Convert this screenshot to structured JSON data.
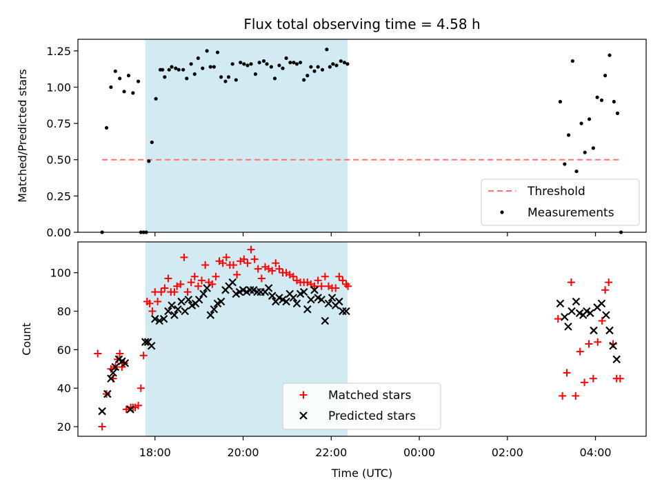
{
  "chart_data": [
    {
      "type": "scatter",
      "title": "Flux total observing time = 4.58 h",
      "xlabel": "",
      "ylabel": "Matched/Predicted stars",
      "x_unit": "hours",
      "xlim": [
        16.25,
        29.15
      ],
      "ylim": [
        0,
        1.33
      ],
      "yticks": [
        0.0,
        0.25,
        0.5,
        0.75,
        1.0,
        1.25
      ],
      "ytick_labels": [
        "0.00",
        "0.25",
        "0.50",
        "0.75",
        "1.00",
        "1.25"
      ],
      "grid": false,
      "legend_location": "lower right",
      "shaded_span": {
        "x": [
          17.78,
          22.37
        ],
        "color": "#add8e6"
      },
      "threshold_line": {
        "name": "Threshold",
        "y": 0.5,
        "x": [
          16.8,
          28.55
        ],
        "color": "#ff7070",
        "style": "dashed"
      },
      "series": [
        {
          "name": "Measurements",
          "color": "#000000",
          "marker": "dot",
          "x": [
            16.8,
            16.9,
            17.0,
            17.1,
            17.2,
            17.3,
            17.4,
            17.5,
            17.62,
            17.68,
            17.74,
            17.8,
            17.86,
            17.93,
            18.02,
            18.12,
            18.17,
            18.22,
            18.32,
            18.38,
            18.47,
            18.54,
            18.64,
            18.72,
            18.82,
            18.9,
            18.98,
            19.08,
            19.18,
            19.26,
            19.34,
            19.42,
            19.5,
            19.6,
            19.67,
            19.76,
            19.84,
            19.94,
            20.02,
            20.1,
            20.18,
            20.28,
            20.37,
            20.47,
            20.54,
            20.64,
            20.72,
            20.82,
            20.9,
            20.98,
            21.07,
            21.15,
            21.22,
            21.3,
            21.38,
            21.46,
            21.54,
            21.62,
            21.7,
            21.8,
            21.9,
            21.97,
            22.04,
            22.12,
            22.22,
            22.3,
            22.37,
            27.2,
            27.3,
            27.39,
            27.48,
            27.57,
            27.68,
            27.76,
            27.86,
            27.95,
            28.04,
            28.14,
            28.22,
            28.32,
            28.42,
            28.5,
            28.58
          ],
          "y": [
            0.0,
            0.72,
            1.0,
            1.11,
            1.06,
            0.97,
            1.08,
            0.96,
            1.04,
            0.0,
            0.0,
            0.0,
            0.49,
            0.62,
            0.92,
            1.12,
            1.12,
            1.07,
            1.12,
            1.14,
            1.13,
            1.12,
            1.12,
            1.06,
            1.16,
            1.09,
            1.2,
            1.13,
            1.25,
            1.14,
            1.14,
            1.24,
            1.07,
            1.04,
            1.07,
            1.16,
            1.05,
            1.17,
            1.16,
            1.15,
            1.16,
            1.09,
            1.17,
            1.18,
            1.16,
            1.14,
            1.06,
            1.15,
            1.13,
            1.2,
            1.17,
            1.17,
            1.16,
            1.17,
            1.05,
            1.08,
            1.14,
            1.11,
            1.14,
            1.12,
            1.26,
            1.14,
            1.16,
            1.15,
            1.18,
            1.17,
            1.16,
            0.9,
            0.47,
            0.67,
            1.18,
            0.42,
            0.75,
            0.55,
            0.78,
            0.58,
            0.93,
            0.91,
            1.08,
            1.22,
            0.9,
            0.82,
            0.0
          ]
        }
      ]
    },
    {
      "type": "scatter",
      "title": "",
      "xlabel": "Time (UTC)",
      "ylabel": "Count",
      "x_unit": "hours",
      "xlim": [
        16.25,
        29.15
      ],
      "ylim": [
        15,
        116
      ],
      "yticks": [
        20,
        40,
        60,
        80,
        100
      ],
      "ytick_labels": [
        "20",
        "40",
        "60",
        "80",
        "100"
      ],
      "xticks": [
        18,
        20,
        22,
        24,
        26,
        28
      ],
      "xtick_labels": [
        "18:00",
        "20:00",
        "22:00",
        "00:00",
        "02:00",
        "04:00"
      ],
      "grid": false,
      "legend_location": "lower center",
      "shaded_span": {
        "x": [
          17.78,
          22.37
        ],
        "color": "#add8e6"
      },
      "series": [
        {
          "name": "Matched stars",
          "color": "#ff0000",
          "marker": "plus",
          "x": [
            16.7,
            16.8,
            16.9,
            17.0,
            17.05,
            17.1,
            17.15,
            17.2,
            17.25,
            17.3,
            17.35,
            17.45,
            17.5,
            17.55,
            17.62,
            17.68,
            17.74,
            17.82,
            17.88,
            17.94,
            18.0,
            18.06,
            18.14,
            18.22,
            18.3,
            18.36,
            18.44,
            18.5,
            18.58,
            18.66,
            18.74,
            18.82,
            18.9,
            18.98,
            19.06,
            19.14,
            19.22,
            19.3,
            19.38,
            19.46,
            19.54,
            19.62,
            19.7,
            19.78,
            19.86,
            19.94,
            20.02,
            20.1,
            20.18,
            20.26,
            20.34,
            20.42,
            20.5,
            20.58,
            20.66,
            20.74,
            20.82,
            20.9,
            20.98,
            21.06,
            21.14,
            21.22,
            21.3,
            21.38,
            21.46,
            21.54,
            21.62,
            21.7,
            21.78,
            21.86,
            21.94,
            22.02,
            22.1,
            22.18,
            22.26,
            22.34,
            22.38,
            27.15,
            27.25,
            27.35,
            27.45,
            27.55,
            27.65,
            27.75,
            27.85,
            27.95,
            28.05,
            28.15,
            28.22,
            28.3,
            28.4,
            28.48,
            28.56
          ],
          "y": [
            58,
            20,
            37,
            50,
            45,
            51,
            55,
            58,
            51,
            53,
            29,
            30,
            30,
            30,
            31,
            40,
            57,
            85,
            84,
            80,
            90,
            85,
            90,
            92,
            97,
            90,
            90,
            93,
            94,
            108,
            90,
            95,
            98,
            93,
            96,
            104,
            95,
            94,
            98,
            106,
            105,
            108,
            104,
            104,
            99,
            106,
            107,
            105,
            112,
            107,
            102,
            97,
            103,
            102,
            101,
            105,
            102,
            100,
            100,
            99,
            98,
            96,
            95,
            95,
            95,
            94,
            93,
            96,
            93,
            98,
            93,
            92,
            92,
            98,
            96,
            94,
            93,
            76,
            36,
            48,
            95,
            36,
            59,
            43,
            63,
            45,
            64,
            75,
            91,
            95,
            63,
            45,
            45
          ]
        },
        {
          "name": "Predicted stars",
          "color": "#000000",
          "marker": "x",
          "x": [
            16.8,
            16.92,
            17.0,
            17.05,
            17.1,
            17.18,
            17.25,
            17.32,
            17.44,
            17.78,
            17.84,
            17.92,
            18.0,
            18.1,
            18.2,
            18.3,
            18.38,
            18.44,
            18.52,
            18.6,
            18.68,
            18.76,
            18.84,
            18.92,
            19.0,
            19.1,
            19.18,
            19.26,
            19.34,
            19.42,
            19.5,
            19.6,
            19.68,
            19.76,
            19.84,
            19.92,
            20.0,
            20.08,
            20.16,
            20.24,
            20.32,
            20.4,
            20.5,
            20.58,
            20.66,
            20.74,
            20.82,
            20.9,
            20.98,
            21.06,
            21.14,
            21.22,
            21.3,
            21.38,
            21.46,
            21.54,
            21.62,
            21.7,
            21.78,
            21.86,
            21.94,
            22.02,
            22.1,
            22.18,
            22.26,
            22.34,
            27.2,
            27.3,
            27.38,
            27.46,
            27.56,
            27.64,
            27.72,
            27.8,
            27.88,
            27.96,
            28.04,
            28.14,
            28.24,
            28.32,
            28.4,
            28.48
          ],
          "y": [
            28,
            37,
            45,
            48,
            51,
            55,
            54,
            53,
            29,
            64,
            64,
            62,
            76,
            75,
            76,
            80,
            83,
            78,
            81,
            85,
            80,
            86,
            83,
            84,
            86,
            89,
            92,
            78,
            81,
            84,
            85,
            91,
            93,
            95,
            89,
            90,
            91,
            90,
            91,
            91,
            90,
            90,
            90,
            92,
            88,
            85,
            87,
            86,
            85,
            89,
            87,
            84,
            89,
            90,
            81,
            86,
            91,
            87,
            86,
            75,
            84,
            87,
            83,
            85,
            80,
            80,
            84,
            77,
            72,
            80,
            85,
            79,
            78,
            80,
            79,
            70,
            82,
            84,
            78,
            70,
            62,
            55
          ]
        }
      ]
    }
  ]
}
